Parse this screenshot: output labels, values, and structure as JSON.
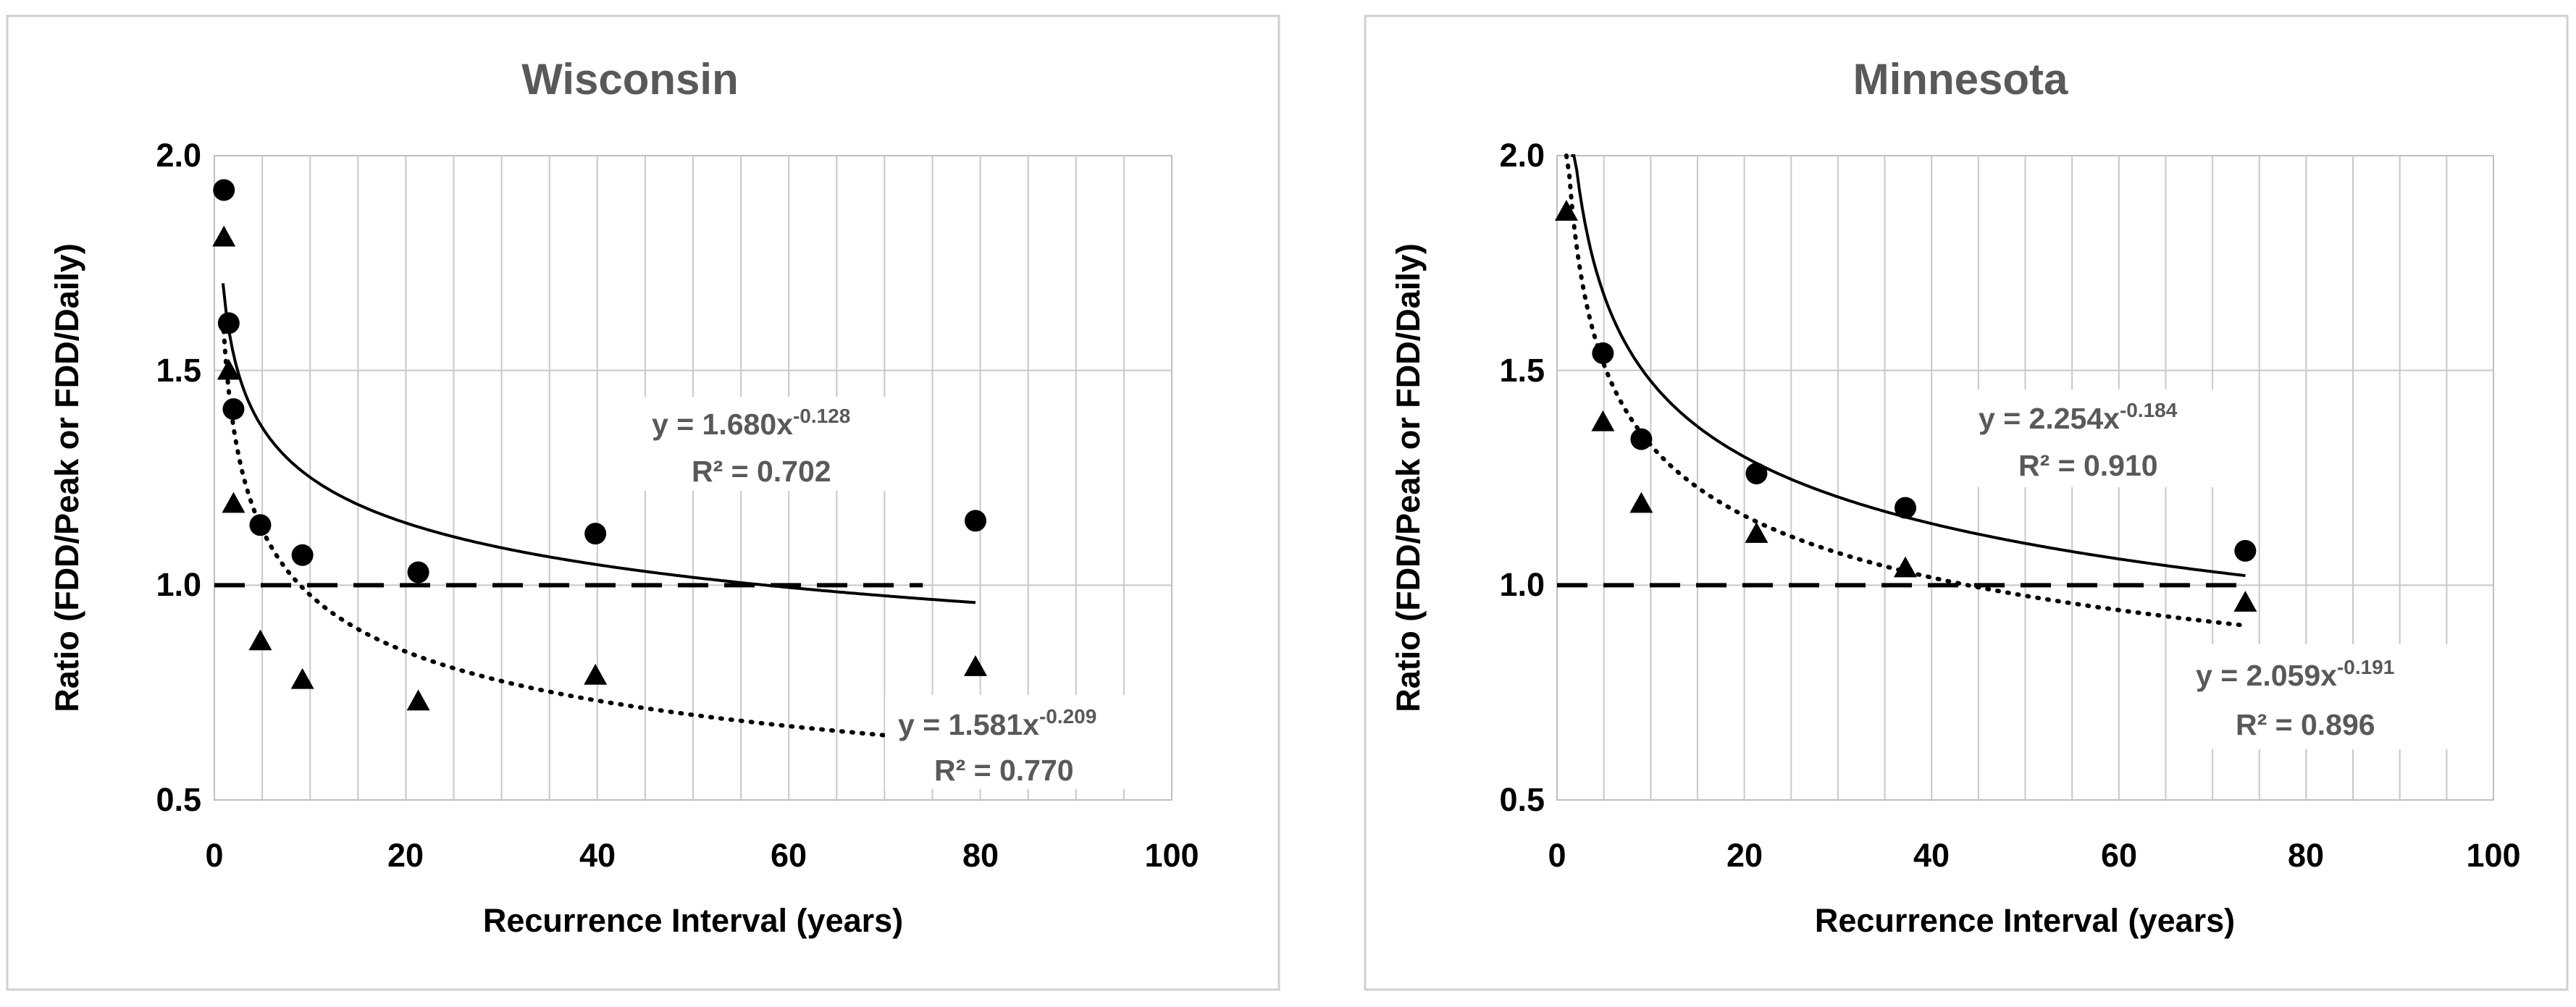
{
  "chart_data": [
    {
      "type": "scatter",
      "title": "Wisconsin",
      "xlabel": "Recurrence Interval (years)",
      "ylabel": "Ratio (FDD/Peak or FDD/Daily)",
      "xlim": [
        0,
        100
      ],
      "ylim": [
        0.5,
        2.0
      ],
      "x_ticks": [
        "0",
        "20",
        "40",
        "60",
        "80",
        "100"
      ],
      "y_ticks": [
        "0.5",
        "1.0",
        "1.5",
        "2.0"
      ],
      "reference_line": {
        "y": 1.0,
        "style": "dashed",
        "x_range": [
          0,
          74
        ]
      },
      "series": [
        {
          "name": "FDD/Peak",
          "marker": "circle",
          "x": [
            1.0,
            1.5,
            2.0,
            4.8,
            9.2,
            21.3,
            39.8,
            79.5
          ],
          "y": [
            1.92,
            1.61,
            1.41,
            1.14,
            1.07,
            1.03,
            1.12,
            1.15
          ],
          "trendline": {
            "type": "power",
            "a": 1.68,
            "b": -0.128,
            "x_range": [
              0.9,
              79.5
            ],
            "style": "solid",
            "equation_main": "y = 1.680x",
            "equation_exp": "-0.128",
            "r2": "R² = 0.702"
          }
        },
        {
          "name": "FDD/Daily",
          "marker": "triangle",
          "x": [
            1.0,
            1.5,
            2.0,
            4.8,
            9.2,
            21.3,
            39.8,
            79.5
          ],
          "y": [
            1.81,
            1.5,
            1.19,
            0.87,
            0.78,
            0.73,
            0.79,
            0.81
          ],
          "trendline": {
            "type": "power",
            "a": 1.581,
            "b": -0.209,
            "x_range": [
              0.9,
              70
            ],
            "style": "dotted",
            "equation_main": "y = 1.581x",
            "equation_exp": "-0.209",
            "r2": "R² = 0.770"
          }
        }
      ]
    },
    {
      "type": "scatter",
      "title": "Minnesota",
      "xlabel": "Recurrence Interval (years)",
      "ylabel": "Ratio (FDD/Peak or FDD/Daily)",
      "xlim": [
        0,
        100
      ],
      "ylim": [
        0.5,
        2.0
      ],
      "x_ticks": [
        "0",
        "20",
        "40",
        "60",
        "80",
        "100"
      ],
      "y_ticks": [
        "0.5",
        "1.0",
        "1.5",
        "2.0"
      ],
      "reference_line": {
        "y": 1.0,
        "style": "dashed",
        "x_range": [
          0,
          73.5
        ]
      },
      "series": [
        {
          "name": "FDD/Peak",
          "marker": "circle",
          "x": [
            4.9,
            9.0,
            21.3,
            37.2,
            73.5
          ],
          "y": [
            1.54,
            1.34,
            1.26,
            1.18,
            1.08
          ],
          "trendline": {
            "type": "power",
            "a": 2.254,
            "b": -0.184,
            "x_range": [
              1.5,
              73.5
            ],
            "style": "solid",
            "equation_main": "y = 2.254x",
            "equation_exp": "-0.184",
            "r2": "R² = 0.910"
          }
        },
        {
          "name": "FDD/Daily",
          "marker": "triangle",
          "x": [
            1.0,
            4.9,
            9.0,
            21.3,
            37.2,
            73.5
          ],
          "y": [
            1.87,
            1.38,
            1.19,
            1.12,
            1.04,
            0.96
          ],
          "trendline": {
            "type": "power",
            "a": 2.059,
            "b": -0.191,
            "x_range": [
              1.0,
              73.5
            ],
            "style": "dotted",
            "equation_main": "y = 2.059x",
            "equation_exp": "-0.191",
            "r2": "R² = 0.896"
          }
        }
      ]
    }
  ]
}
